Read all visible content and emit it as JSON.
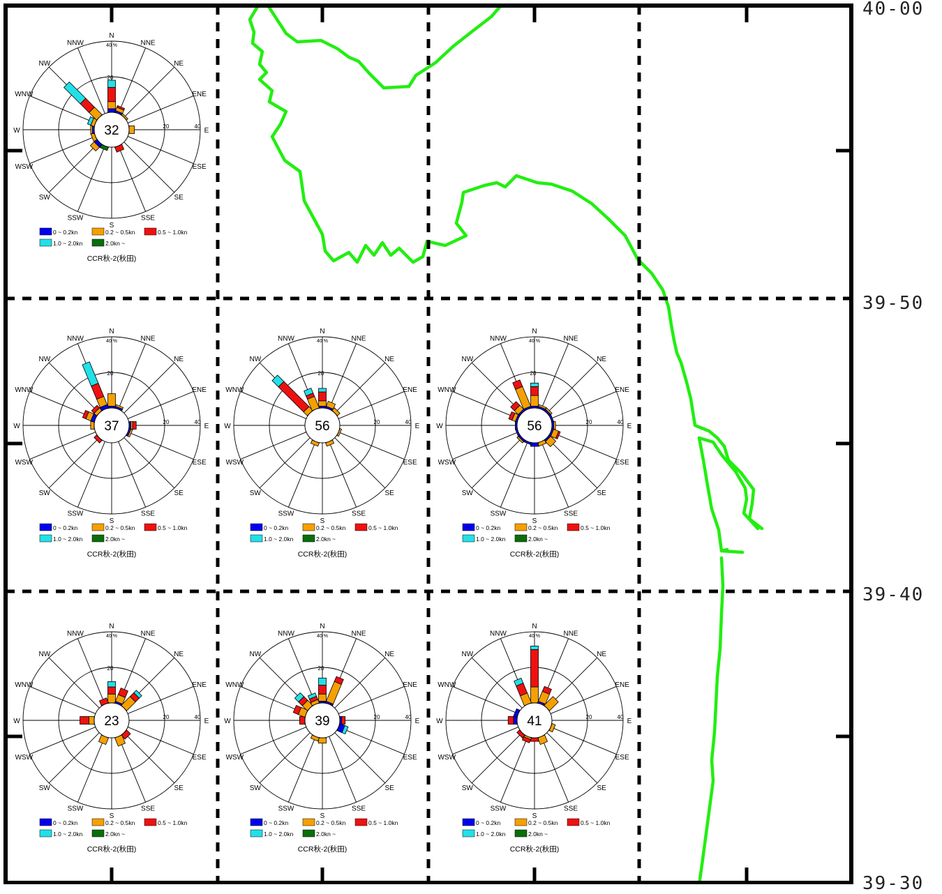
{
  "map": {
    "lat_labels": [
      "40-00",
      "39-50",
      "39-40",
      "39-30"
    ],
    "coast_color": "#22ee11",
    "grid_color": "#000000"
  },
  "chart_data": [
    {
      "type": "wind-rose",
      "station": "CCR秋-2(秋田)",
      "calm_count": 32,
      "grid_cell": "row1-col1",
      "directions": [
        "N",
        "NNE",
        "NE",
        "ENE",
        "E",
        "ESE",
        "SE",
        "SSE",
        "S",
        "SSW",
        "SW",
        "WSW",
        "W",
        "WNW",
        "NW",
        "NNW"
      ],
      "ring_scale": {
        "labels": [
          "20",
          "40"
        ],
        "unit": "%",
        "max": 40
      },
      "speed_classes": [
        {
          "name": "0 ~ 0.2kn",
          "color": "#0000ee"
        },
        {
          "name": "0.2 ~ 0.5kn",
          "color": "#f5a000"
        },
        {
          "name": "0.5 ~ 1.0kn",
          "color": "#ee1111"
        },
        {
          "name": "1.0 ~ 2.0kn",
          "color": "#22e0e8"
        },
        {
          "name": "2.0kn ~",
          "color": "#0a6e0a"
        }
      ],
      "values": [
        [
          2,
          4,
          8,
          4,
          0
        ],
        [
          1,
          2,
          1,
          0,
          0
        ],
        [
          0,
          1,
          0,
          0,
          0
        ],
        [
          0,
          0,
          0,
          0,
          0
        ],
        [
          0,
          3,
          0,
          0,
          0
        ],
        [
          0,
          0,
          0,
          0,
          0
        ],
        [
          0,
          0,
          0,
          0,
          0
        ],
        [
          0,
          0,
          3,
          0,
          0
        ],
        [
          0,
          0,
          0,
          0,
          0
        ],
        [
          0,
          0,
          0,
          0,
          2
        ],
        [
          2,
          3,
          0,
          0,
          0
        ],
        [
          0,
          2,
          0,
          0,
          0
        ],
        [
          1,
          1,
          0,
          0,
          0
        ],
        [
          0,
          2,
          0,
          2,
          0
        ],
        [
          0,
          6,
          7,
          13,
          0
        ],
        [
          0,
          0,
          0,
          0,
          0
        ]
      ]
    },
    {
      "type": "wind-rose",
      "station": "CCR秋-2(秋田)",
      "calm_count": 37,
      "grid_cell": "row2-col1",
      "directions": [
        "N",
        "NNE",
        "NE",
        "ENE",
        "E",
        "ESE",
        "SE",
        "SSE",
        "S",
        "SSW",
        "SW",
        "WSW",
        "W",
        "WNW",
        "NW",
        "NNW"
      ],
      "ring_scale": {
        "labels": [
          "20",
          "40"
        ],
        "unit": "%",
        "max": 40
      },
      "speed_classes": [
        {
          "name": "0 ~ 0.2kn",
          "color": "#0000ee"
        },
        {
          "name": "0.2 ~ 0.5kn",
          "color": "#f5a000"
        },
        {
          "name": "0.5 ~ 1.0kn",
          "color": "#ee1111"
        },
        {
          "name": "1.0 ~ 2.0kn",
          "color": "#22e0e8"
        },
        {
          "name": "2.0kn ~",
          "color": "#0a6e0a"
        }
      ],
      "values": [
        [
          1,
          7,
          0,
          0,
          0
        ],
        [
          1,
          1,
          0,
          0,
          0
        ],
        [
          0,
          0,
          0,
          0,
          0
        ],
        [
          0,
          0,
          0,
          0,
          0
        ],
        [
          1,
          1,
          2,
          0,
          0
        ],
        [
          1,
          1,
          0,
          0,
          0
        ],
        [
          0,
          0,
          0,
          0,
          0
        ],
        [
          0,
          0,
          0,
          0,
          0
        ],
        [
          0,
          0,
          0,
          0,
          0
        ],
        [
          0,
          0,
          0,
          0,
          0
        ],
        [
          0,
          0,
          2,
          0,
          0
        ],
        [
          0,
          0,
          0,
          0,
          0
        ],
        [
          0,
          2,
          0,
          0,
          0
        ],
        [
          2,
          3,
          2,
          0,
          0
        ],
        [
          0,
          2,
          2,
          0,
          0
        ],
        [
          2,
          5,
          8,
          13,
          0
        ]
      ]
    },
    {
      "type": "wind-rose",
      "station": "CCR秋-2(秋田)",
      "calm_count": 56,
      "grid_cell": "row2-col2",
      "directions": [
        "N",
        "NNE",
        "NE",
        "ENE",
        "E",
        "ESE",
        "SE",
        "SSE",
        "S",
        "SSW",
        "SW",
        "WSW",
        "W",
        "WNW",
        "NW",
        "NNW"
      ],
      "ring_scale": {
        "labels": [
          "20",
          "40"
        ],
        "unit": "%",
        "max": 40
      },
      "speed_classes": [
        {
          "name": "0 ~ 0.2kn",
          "color": "#0000ee"
        },
        {
          "name": "0.2 ~ 0.5kn",
          "color": "#f5a000"
        },
        {
          "name": "0.5 ~ 1.0kn",
          "color": "#ee1111"
        },
        {
          "name": "1.0 ~ 2.0kn",
          "color": "#22e0e8"
        },
        {
          "name": "2.0kn ~",
          "color": "#0a6e0a"
        }
      ],
      "values": [
        [
          1,
          3,
          5,
          2,
          0
        ],
        [
          1,
          3,
          0,
          0,
          0
        ],
        [
          0,
          2,
          0,
          0,
          0
        ],
        [
          0,
          0,
          0,
          0,
          0
        ],
        [
          0,
          0,
          0,
          0,
          0
        ],
        [
          0,
          1,
          0,
          0,
          0
        ],
        [
          0,
          0,
          0,
          0,
          0
        ],
        [
          0,
          2,
          0,
          0,
          0
        ],
        [
          0,
          0,
          0,
          0,
          0
        ],
        [
          0,
          2,
          0,
          0,
          0
        ],
        [
          0,
          0,
          0,
          0,
          0
        ],
        [
          0,
          0,
          0,
          0,
          0
        ],
        [
          0,
          0,
          0,
          0,
          0
        ],
        [
          0,
          0,
          0,
          0,
          0
        ],
        [
          0,
          3,
          20,
          5,
          0
        ],
        [
          0,
          7,
          2,
          3,
          0
        ]
      ]
    },
    {
      "type": "wind-rose",
      "station": "CCR秋-2(秋田)",
      "calm_count": 56,
      "grid_cell": "row2-col3",
      "directions": [
        "N",
        "NNE",
        "NE",
        "ENE",
        "E",
        "ESE",
        "SE",
        "SSE",
        "S",
        "SSW",
        "SW",
        "WSW",
        "W",
        "WNW",
        "NW",
        "NNW"
      ],
      "ring_scale": {
        "labels": [
          "20",
          "40"
        ],
        "unit": "%",
        "max": 40
      },
      "speed_classes": [
        {
          "name": "0 ~ 0.2kn",
          "color": "#0000ee"
        },
        {
          "name": "0.2 ~ 0.5kn",
          "color": "#f5a000"
        },
        {
          "name": "0.5 ~ 1.0kn",
          "color": "#ee1111"
        },
        {
          "name": "1.0 ~ 2.0kn",
          "color": "#22e0e8"
        },
        {
          "name": "2.0kn ~",
          "color": "#0a6e0a"
        }
      ],
      "values": [
        [
          1,
          6,
          5,
          2,
          0
        ],
        [
          1,
          1,
          0,
          0,
          0
        ],
        [
          1,
          1,
          0,
          0,
          0
        ],
        [
          1,
          0,
          0,
          0,
          0
        ],
        [
          1,
          1,
          0,
          0,
          0
        ],
        [
          1,
          3,
          1,
          0,
          0
        ],
        [
          1,
          4,
          0,
          0,
          0
        ],
        [
          0,
          2,
          0,
          0,
          0
        ],
        [
          2,
          0,
          0,
          0,
          0
        ],
        [
          1,
          0,
          0,
          0,
          0
        ],
        [
          1,
          1,
          0,
          0,
          0
        ],
        [
          1,
          0,
          0,
          0,
          0
        ],
        [
          1,
          0,
          0,
          0,
          0
        ],
        [
          1,
          2,
          2,
          0,
          0
        ],
        [
          1,
          3,
          3,
          0,
          0
        ],
        [
          1,
          12,
          4,
          0,
          0
        ]
      ]
    },
    {
      "type": "wind-rose",
      "station": "CCR秋-2(秋田)",
      "calm_count": 23,
      "grid_cell": "row3-col1",
      "directions": [
        "N",
        "NNE",
        "NE",
        "ENE",
        "E",
        "ESE",
        "SE",
        "SSE",
        "S",
        "SSW",
        "SW",
        "WSW",
        "W",
        "WNW",
        "NW",
        "NNW"
      ],
      "ring_scale": {
        "labels": [
          "20",
          "40"
        ],
        "unit": "%",
        "max": 40
      },
      "speed_classes": [
        {
          "name": "0 ~ 0.2kn",
          "color": "#0000ee"
        },
        {
          "name": "0.2 ~ 0.5kn",
          "color": "#f5a000"
        },
        {
          "name": "0.5 ~ 1.0kn",
          "color": "#ee1111"
        },
        {
          "name": "1.0 ~ 2.0kn",
          "color": "#22e0e8"
        },
        {
          "name": "2.0kn ~",
          "color": "#0a6e0a"
        }
      ],
      "values": [
        [
          0,
          5,
          4,
          3,
          0
        ],
        [
          1,
          4,
          4,
          0,
          0
        ],
        [
          0,
          7,
          3,
          2,
          0
        ],
        [
          0,
          0,
          0,
          0,
          0
        ],
        [
          0,
          0,
          0,
          0,
          0
        ],
        [
          0,
          0,
          0,
          0,
          0
        ],
        [
          0,
          0,
          3,
          0,
          0
        ],
        [
          0,
          5,
          0,
          0,
          0
        ],
        [
          0,
          0,
          0,
          0,
          0
        ],
        [
          0,
          4,
          0,
          0,
          0
        ],
        [
          0,
          0,
          0,
          0,
          0
        ],
        [
          0,
          0,
          0,
          0,
          0
        ],
        [
          0,
          3,
          5,
          0,
          0
        ],
        [
          0,
          0,
          0,
          0,
          0
        ],
        [
          0,
          0,
          0,
          0,
          0
        ],
        [
          0,
          0,
          3,
          0,
          0
        ]
      ]
    },
    {
      "type": "wind-rose",
      "station": "CCR秋-2(秋田)",
      "calm_count": 39,
      "grid_cell": "row3-col2",
      "directions": [
        "N",
        "NNE",
        "NE",
        "ENE",
        "E",
        "ESE",
        "SE",
        "SSE",
        "S",
        "SSW",
        "SW",
        "WSW",
        "W",
        "WNW",
        "NW",
        "NNW"
      ],
      "ring_scale": {
        "labels": [
          "20",
          "40"
        ],
        "unit": "%",
        "max": 40
      },
      "speed_classes": [
        {
          "name": "0 ~ 0.2kn",
          "color": "#0000ee"
        },
        {
          "name": "0.2 ~ 0.5kn",
          "color": "#f5a000"
        },
        {
          "name": "0.5 ~ 1.0kn",
          "color": "#ee1111"
        },
        {
          "name": "1.0 ~ 2.0kn",
          "color": "#22e0e8"
        },
        {
          "name": "2.0kn ~",
          "color": "#0a6e0a"
        }
      ],
      "values": [
        [
          1,
          4,
          5,
          4,
          0
        ],
        [
          1,
          12,
          3,
          0,
          0
        ],
        [
          0,
          0,
          0,
          0,
          0
        ],
        [
          0,
          0,
          0,
          0,
          0
        ],
        [
          1,
          0,
          2,
          0,
          0
        ],
        [
          3,
          0,
          0,
          2,
          0
        ],
        [
          0,
          0,
          0,
          0,
          0
        ],
        [
          0,
          0,
          0,
          0,
          0
        ],
        [
          0,
          3,
          0,
          0,
          0
        ],
        [
          0,
          2,
          0,
          0,
          0
        ],
        [
          0,
          0,
          0,
          0,
          0
        ],
        [
          0,
          0,
          0,
          0,
          0
        ],
        [
          0,
          0,
          3,
          0,
          0
        ],
        [
          0,
          4,
          3,
          0,
          0
        ],
        [
          0,
          4,
          3,
          3,
          0
        ],
        [
          0,
          2,
          2,
          2,
          0
        ]
      ]
    },
    {
      "type": "wind-rose",
      "station": "CCR秋-2(秋田)",
      "calm_count": 41,
      "grid_cell": "row3-col3",
      "directions": [
        "N",
        "NNE",
        "NE",
        "ENE",
        "E",
        "ESE",
        "SE",
        "SSE",
        "S",
        "SSW",
        "SW",
        "WSW",
        "W",
        "WNW",
        "NW",
        "NNW"
      ],
      "ring_scale": {
        "labels": [
          "20",
          "40"
        ],
        "unit": "%",
        "max": 40
      },
      "speed_classes": [
        {
          "name": "0 ~ 0.2kn",
          "color": "#0000ee"
        },
        {
          "name": "0.2 ~ 0.5kn",
          "color": "#f5a000"
        },
        {
          "name": "0.5 ~ 1.0kn",
          "color": "#ee1111"
        },
        {
          "name": "1.0 ~ 2.0kn",
          "color": "#22e0e8"
        },
        {
          "name": "2.0kn ~",
          "color": "#0a6e0a"
        }
      ],
      "values": [
        [
          0,
          9,
          21,
          2,
          0
        ],
        [
          1,
          6,
          3,
          0,
          0
        ],
        [
          0,
          7,
          0,
          0,
          0
        ],
        [
          0,
          0,
          0,
          0,
          0
        ],
        [
          0,
          0,
          0,
          0,
          0
        ],
        [
          0,
          2,
          0,
          0,
          0
        ],
        [
          0,
          0,
          0,
          0,
          0
        ],
        [
          0,
          4,
          0,
          0,
          0
        ],
        [
          0,
          0,
          2,
          0,
          0
        ],
        [
          0,
          1,
          2,
          0,
          0
        ],
        [
          0,
          0,
          2,
          0,
          0
        ],
        [
          0,
          0,
          0,
          0,
          0
        ],
        [
          2,
          0,
          3,
          0,
          0
        ],
        [
          2,
          0,
          0,
          0,
          0
        ],
        [
          0,
          0,
          0,
          0,
          0
        ],
        [
          0,
          6,
          6,
          3,
          0
        ]
      ]
    }
  ]
}
